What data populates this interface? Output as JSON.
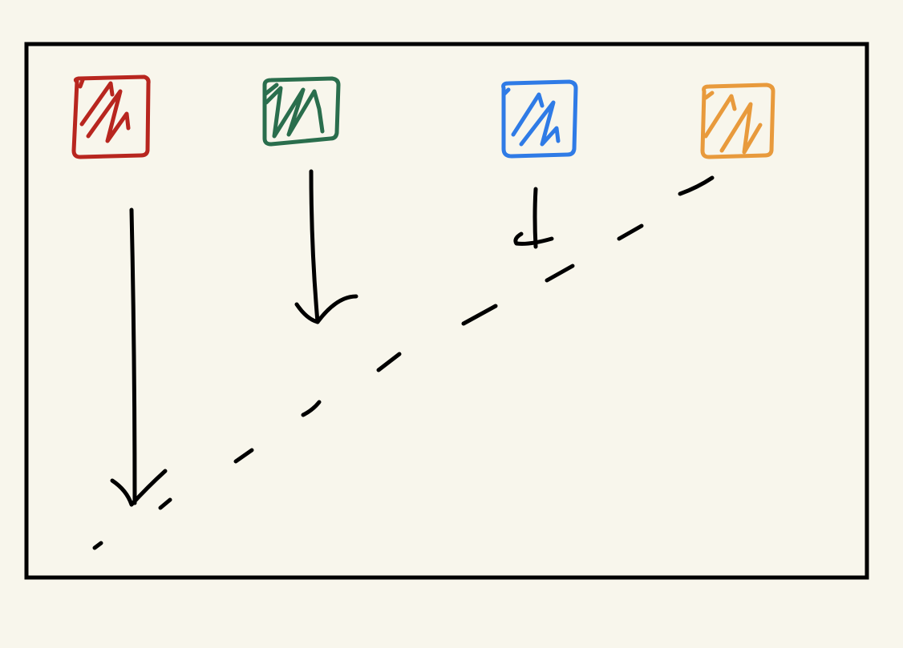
{
  "diagram": {
    "description_free": true,
    "colors": {
      "background": "#f8f6ec",
      "ink": "#000000",
      "red": "#b8261f",
      "green": "#2a6e4d",
      "blue": "#2f7be6",
      "orange": "#e89a3c"
    },
    "blocks": [
      {
        "name": "red-block",
        "color_key": "red"
      },
      {
        "name": "green-block",
        "color_key": "green"
      },
      {
        "name": "blue-block",
        "color_key": "blue"
      },
      {
        "name": "orange-block",
        "color_key": "orange"
      }
    ]
  }
}
